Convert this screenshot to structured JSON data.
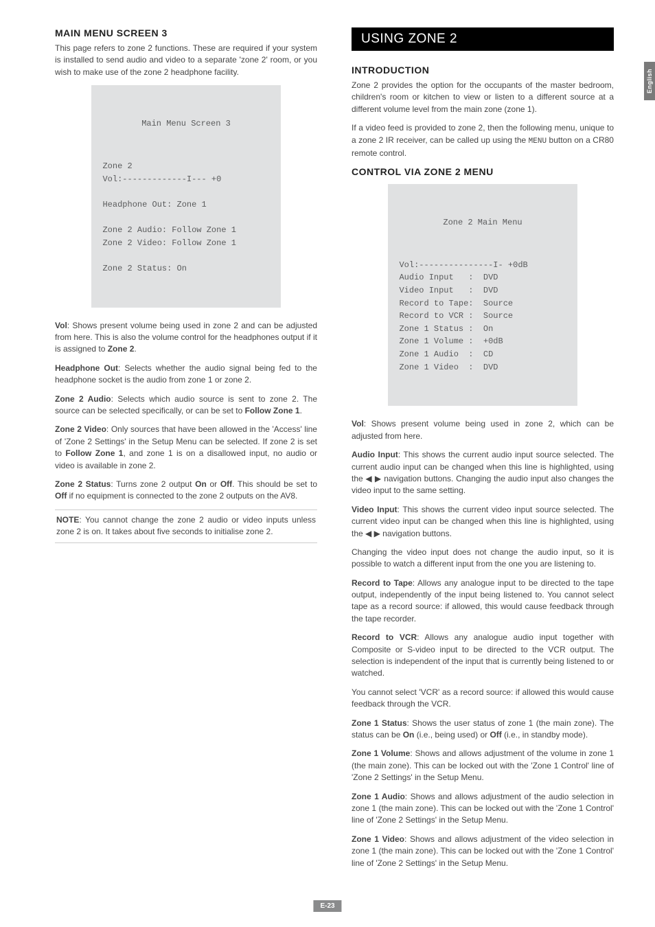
{
  "sideTab": "English",
  "pageNum": "E-23",
  "left": {
    "heading": "MAIN MENU SCREEN 3",
    "intro": "This page refers to zone 2 functions. These are required if your system is installed to send audio and video to a separate 'zone 2' room, or you wish to make use of the zone 2 headphone facility.",
    "screenTitle": "Main Menu Screen 3",
    "screenBody": "Zone 2\nVol:-------------I--- +0\n\nHeadphone Out: Zone 1\n\nZone 2 Audio: Follow Zone 1\nZone 2 Video: Follow Zone 1\n\nZone 2 Status: On",
    "paras": {
      "vol_b": "Vol",
      "vol_t": ": Shows present volume being used in zone 2 and can be adjusted from here. This is also the volume control for the headphones output if it is assigned to ",
      "vol_t2": "Zone 2",
      "vol_t3": ".",
      "hp_b": "Headphone Out",
      "hp_t": ": Selects whether the audio signal being fed to the headphone socket is the audio from zone 1 or zone 2.",
      "z2a_b": "Zone 2 Audio",
      "z2a_t": ": Selects which audio source is sent to zone 2. The source can be selected specifically, or can be set to ",
      "z2a_t2": "Follow Zone 1",
      "z2a_t3": ".",
      "z2v_b": "Zone 2 Video",
      "z2v_t": ": Only sources that have been allowed in the 'Access' line of 'Zone 2 Settings' in the Setup Menu can be selected. If zone 2 is set to ",
      "z2v_t2": "Follow Zone 1",
      "z2v_t3": ", and zone 1 is on a disallowed input, no audio or video is available in zone 2.",
      "z2s_b": "Zone 2 Status",
      "z2s_t": ": Turns zone 2 output ",
      "z2s_on": "On",
      "z2s_t2": " or ",
      "z2s_off": "Off",
      "z2s_t3": ". This should be set to ",
      "z2s_off2": "Off",
      "z2s_t4": " if no equipment is connected to the zone 2 outputs on the AV8.",
      "note_b": "NOTE",
      "note_t": ": You cannot change the zone 2 audio or video inputs unless zone 2 is on. It takes about five seconds to initialise zone 2."
    }
  },
  "right": {
    "sectionTitle": "USING ZONE 2",
    "introHeading": "INTRODUCTION",
    "intro1": "Zone 2 provides the option for the occupants of the master bedroom, children's room or kitchen to view or listen to a different source at a different volume level from the main zone (zone 1).",
    "intro2a": "If a video feed is provided to zone 2, then the following menu, unique to a zone 2 IR receiver, can be called up using the ",
    "intro2menu": "MENU",
    "intro2b": " button on a CR80 remote control.",
    "ctrlHeading": "CONTROL VIA ZONE 2 MENU",
    "screenTitle": "Zone 2 Main Menu",
    "screenBody": "Vol:---------------I- +0dB\nAudio Input   :  DVD\nVideo Input   :  DVD\nRecord to Tape:  Source\nRecord to VCR :  Source\nZone 1 Status :  On\nZone 1 Volume :  +0dB\nZone 1 Audio  :  CD\nZone 1 Video  :  DVD",
    "paras": {
      "vol_b": "Vol",
      "vol_t": ": Shows present volume being used in zone 2, which can be adjusted from here.",
      "ai_b": "Audio Input",
      "ai_t1": ": This shows the current audio input source selected. The current audio input can be changed when this line is highlighted, using the ",
      "ai_t2": " navigation buttons. Changing the audio input also changes the video input to the same setting.",
      "vi_b": "Video Input",
      "vi_t1": ": This shows the current video input source selected. The current video input can be changed when this line is highlighted, using the ",
      "vi_t2": " navigation buttons.",
      "sep": "Changing the video input does not change the audio input, so it is possible to watch a different input from the one you are listening to.",
      "rt_b": "Record to Tape",
      "rt_t": ": Allows any analogue input to be directed to the tape output, independently of the input being listened to. You cannot select tape as a record source: if allowed, this would cause feedback through the tape recorder.",
      "rv_b": "Record to VCR",
      "rv_t": ": Allows any analogue audio input together with Composite or S-video input to be directed to the VCR output. The selection is independent of the input that is currently being listened to or watched.",
      "rv2": "You cannot select 'VCR' as a record source: if allowed this would cause feedback through the VCR.",
      "z1s_b": "Zone 1 Status",
      "z1s_t1": ": Shows the user status of zone 1 (the main zone). The status can be ",
      "z1s_on": "On",
      "z1s_t2": " (i.e., being used) or ",
      "z1s_off": "Off",
      "z1s_t3": " (i.e., in standby mode).",
      "z1vol_b": "Zone 1 Volume",
      "z1vol_t": ": Shows and allows adjustment of the volume in zone 1 (the main zone). This can be locked out with the 'Zone 1 Control' line of 'Zone 2 Settings' in the Setup Menu.",
      "z1a_b": "Zone 1 Audio",
      "z1a_t": ": Shows and allows adjustment of the audio selection in zone 1 (the main zone). This can be locked out with the 'Zone 1 Control' line of 'Zone 2 Settings' in the Setup Menu.",
      "z1v_b": "Zone 1 Video",
      "z1v_t": ": Shows and allows adjustment of the video selection in zone 1 (the main zone). This can be locked out with the 'Zone 1 Control' line of 'Zone 2 Settings' in the Setup Menu."
    }
  }
}
